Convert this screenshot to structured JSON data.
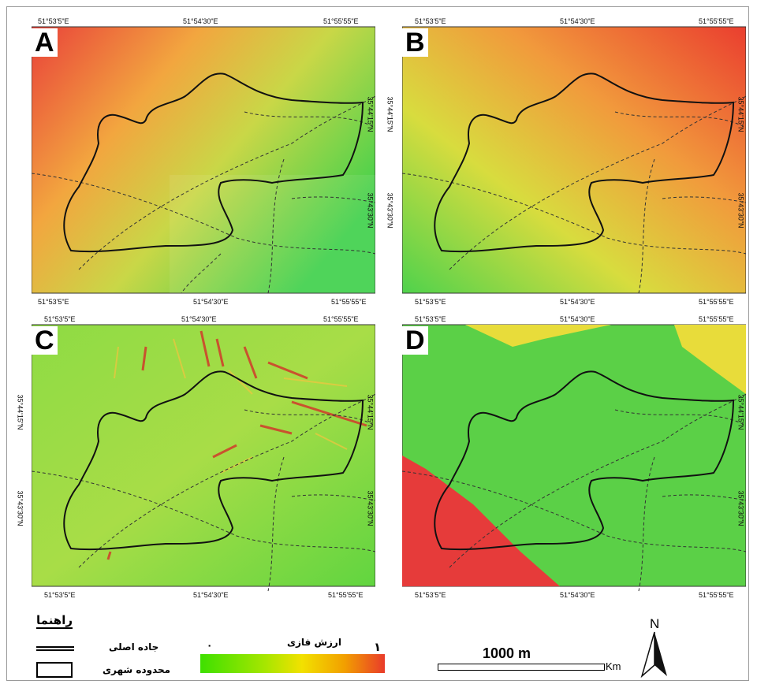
{
  "panels": [
    {
      "letter": "A",
      "top_coords": [
        "51°53'5\"E",
        "51°54'30\"E",
        "51°55'55\"E"
      ],
      "bottom_coords": [
        "51°53'5\"E",
        "51°54'30\"E",
        "51°55'55\"E"
      ],
      "right_coords": [
        "35°44'15\"N",
        "35°43'30\"N"
      ],
      "left_coords": [],
      "colors": [
        "#f07a40",
        "#f2b540",
        "#b9d24a",
        "#4fd24c"
      ]
    },
    {
      "letter": "B",
      "top_coords": [
        "51°53'5\"E",
        "51°54'30\"E",
        "51°55'55\"E"
      ],
      "bottom_coords": [
        "51°53'5\"E",
        "51°54'30\"E",
        "51°55'55\"E"
      ],
      "right_coords": [
        "35°44'15\"N",
        "35°43'30\"N"
      ],
      "left_coords": [
        "35°44'15\"N",
        "35°43'30\"N"
      ],
      "colors": [
        "#ee5530",
        "#f2b03c",
        "#d8dc3e",
        "#62d447"
      ]
    },
    {
      "letter": "C",
      "top_coords": [
        "51°53'5\"E",
        "51°54'30\"E",
        "51°55'55\"E"
      ],
      "bottom_coords": [
        "51°53'5\"E",
        "51°54'30\"E",
        "51°55'55\"E"
      ],
      "right_coords": [
        "35°44'15\"N",
        "35°43'30\"N"
      ],
      "left_coords": [
        "35°44'15\"N",
        "35°43'30\"N"
      ],
      "colors": [
        "#7fdc42",
        "#a2dd46",
        "#8cdc45",
        "#6cd640"
      ]
    },
    {
      "letter": "D",
      "top_coords": [
        "51°53'5\"E",
        "51°54'30\"E",
        "51°55'55\"E"
      ],
      "bottom_coords": [
        "51°53'5\"E",
        "51°54'30\"E",
        "51°55'55\"E"
      ],
      "right_coords": [
        "35°44'15\"N",
        "35°43'30\"N"
      ],
      "left_coords": [],
      "colors": [
        "#5bd047",
        "#5bd047",
        "#5bd047",
        "#5bd047"
      ]
    }
  ],
  "legend": {
    "title": "راهنما",
    "road_label": "جاده اصلی",
    "boundary_label": "محدوده شهری",
    "gradient_title": "ارزش فازی",
    "gradient_min": "٠",
    "gradient_max": "١",
    "gradient_colors": [
      "#3ee000",
      "#f2e100",
      "#e93b2a"
    ]
  },
  "scale": {
    "label": "1000 m",
    "unit": "Km"
  },
  "north": {
    "label": "N"
  }
}
